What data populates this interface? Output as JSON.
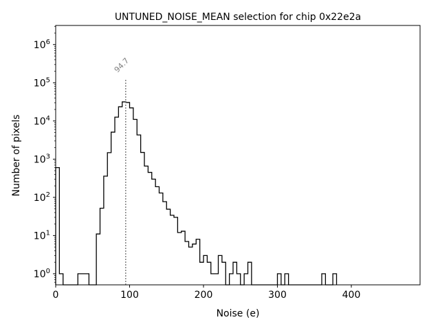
{
  "chart_data": {
    "type": "histogram",
    "title": "UNTUNED_NOISE_MEAN selection for chip 0x22e2a",
    "xlabel": "Noise (e)",
    "ylabel": "Number of pixels",
    "xlim": [
      0,
      493
    ],
    "ylim_log10": [
      -0.29,
      6.5
    ],
    "yscale": "log",
    "bin_width": 5,
    "bin_start": 0,
    "counts": [
      600,
      1,
      0,
      0,
      0,
      0,
      1,
      1,
      1,
      0,
      0,
      11,
      52,
      360,
      1480,
      5100,
      12600,
      23500,
      31600,
      30500,
      22000,
      11000,
      4300,
      1500,
      660,
      450,
      300,
      190,
      130,
      77,
      49,
      34,
      30,
      12,
      13,
      7,
      5,
      6,
      8,
      2,
      3,
      2,
      1,
      1,
      3,
      2,
      0,
      1,
      2,
      1,
      0,
      1,
      2,
      0,
      0,
      0,
      0,
      0,
      0,
      0,
      1,
      0,
      1,
      0,
      0,
      0,
      0,
      0,
      0,
      0,
      0,
      0,
      1,
      0,
      0,
      1
    ],
    "x_ticks": [
      0,
      100,
      200,
      300,
      400
    ],
    "x_tick_labels": [
      "0",
      "100",
      "200",
      "300",
      "400"
    ],
    "y_ticks_exp": [
      0,
      1,
      2,
      3,
      4,
      5,
      6
    ],
    "y_tick_base": "10",
    "annotation": {
      "value": 94.7,
      "label": "94.7",
      "line_top": 130000
    },
    "colors": {
      "hist": "#000000",
      "annotation": "#808080"
    }
  }
}
